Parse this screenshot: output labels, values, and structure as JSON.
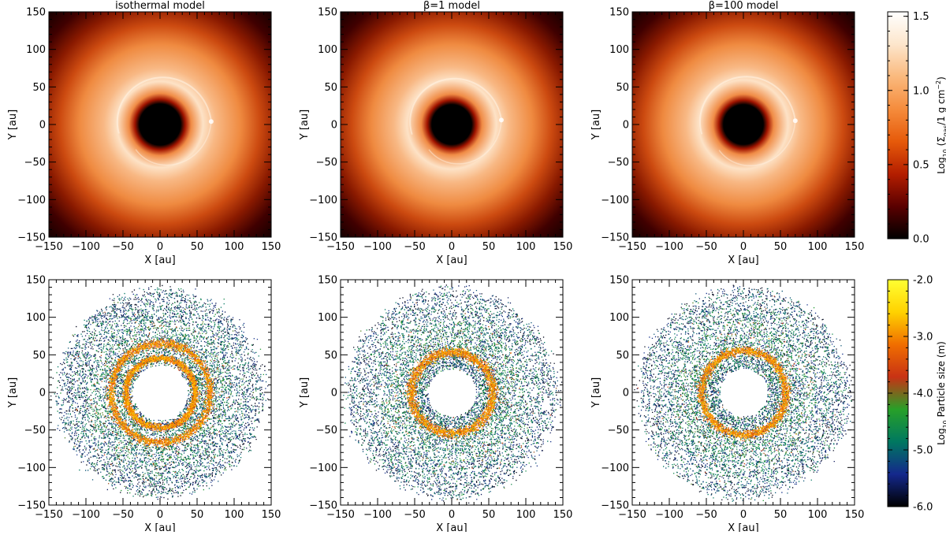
{
  "chart_data": [
    {
      "type": "heatmap",
      "title": "isothermal model",
      "xlabel": "X [au]",
      "ylabel": "Y [au]",
      "xlim": [
        -150,
        150
      ],
      "ylim": [
        -150,
        150
      ],
      "x_ticks": [
        -150,
        -100,
        -50,
        0,
        50,
        100,
        150
      ],
      "y_ticks": [
        -150,
        -100,
        -50,
        0,
        50,
        100,
        150
      ],
      "quantity": "gas",
      "cavity_radius": 28,
      "ring_radius": 58,
      "planet": {
        "x": 69,
        "y": 4
      }
    },
    {
      "type": "heatmap",
      "title": "β=1 model",
      "xlabel": "X [au]",
      "ylabel": "Y [au]",
      "xlim": [
        -150,
        150
      ],
      "ylim": [
        -150,
        150
      ],
      "x_ticks": [
        -150,
        -100,
        -50,
        0,
        50,
        100,
        150
      ],
      "y_ticks": [
        -150,
        -100,
        -50,
        0,
        50,
        100,
        150
      ],
      "quantity": "gas",
      "cavity_radius": 27,
      "ring_radius": 60,
      "planet": {
        "x": 67,
        "y": 6
      }
    },
    {
      "type": "heatmap",
      "title": "β=100 model",
      "xlabel": "X [au]",
      "ylabel": "Y [au]",
      "xlim": [
        -150,
        150
      ],
      "ylim": [
        -150,
        150
      ],
      "x_ticks": [
        -150,
        -100,
        -50,
        0,
        50,
        100,
        150
      ],
      "y_ticks": [
        -150,
        -100,
        -50,
        0,
        50,
        100,
        150
      ],
      "quantity": "gas",
      "cavity_radius": 27,
      "ring_radius": 60,
      "planet": {
        "x": 70,
        "y": 5
      }
    },
    {
      "type": "scatter",
      "xlabel": "X [au]",
      "ylabel": "Y [au]",
      "xlim": [
        -150,
        150
      ],
      "ylim": [
        -150,
        150
      ],
      "x_ticks": [
        -150,
        -100,
        -50,
        0,
        50,
        100,
        150
      ],
      "y_ticks": [
        -150,
        -100,
        -50,
        0,
        50,
        100,
        150
      ],
      "quantity": "dust",
      "cavity_radius": 37,
      "rings": [
        {
          "radius": 67,
          "width": 5
        },
        {
          "radius": 47,
          "width": 4
        }
      ],
      "outer_radius": 140
    },
    {
      "type": "scatter",
      "xlabel": "X [au]",
      "ylabel": "Y [au]",
      "xlim": [
        -150,
        150
      ],
      "ylim": [
        -150,
        150
      ],
      "x_ticks": [
        -150,
        -100,
        -50,
        0,
        50,
        100,
        150
      ],
      "y_ticks": [
        -150,
        -100,
        -50,
        0,
        50,
        100,
        150
      ],
      "quantity": "dust",
      "cavity_radius": 32,
      "rings": [
        {
          "radius": 55,
          "width": 6
        }
      ],
      "outer_radius": 142
    },
    {
      "type": "scatter",
      "xlabel": "X [au]",
      "ylabel": "Y [au]",
      "xlim": [
        -150,
        150
      ],
      "ylim": [
        -150,
        150
      ],
      "x_ticks": [
        -150,
        -100,
        -50,
        0,
        50,
        100,
        150
      ],
      "y_ticks": [
        -150,
        -100,
        -50,
        0,
        50,
        100,
        150
      ],
      "quantity": "dust",
      "cavity_radius": 32,
      "rings": [
        {
          "radius": 57,
          "width": 5
        }
      ],
      "outer_radius": 142
    }
  ],
  "colorbars": [
    {
      "label_main": "Log",
      "label_sub": "10",
      "label_rest": " (Σ",
      "label_sub2": "gas",
      "label_rest2": "/1 g cm",
      "label_sup": "−2",
      "label_end": ")",
      "ticks": [
        "0.0",
        "0.5",
        "1.0",
        "1.5"
      ],
      "range": [
        0,
        1.53
      ],
      "tick_values": [
        0,
        0.5,
        1.0,
        1.5
      ],
      "colors": [
        "#000000",
        "#5a0000",
        "#b41e00",
        "#e65a0a",
        "#f58c3c",
        "#fab97d",
        "#fde6cc",
        "#ffffff"
      ]
    },
    {
      "label_main": "Log",
      "label_sub": "10",
      "label_rest": " Particle size (m)",
      "ticks": [
        "-6.0",
        "-5.0",
        "-4.0",
        "-3.0",
        "-2.0"
      ],
      "range": [
        -6,
        -2
      ],
      "tick_values": [
        -6,
        -5,
        -4,
        -3,
        -2
      ],
      "colors": [
        "#000000",
        "#14288c",
        "#007860",
        "#28a028",
        "#c83214",
        "#f06e00",
        "#ffd200",
        "#ffff32"
      ]
    }
  ]
}
